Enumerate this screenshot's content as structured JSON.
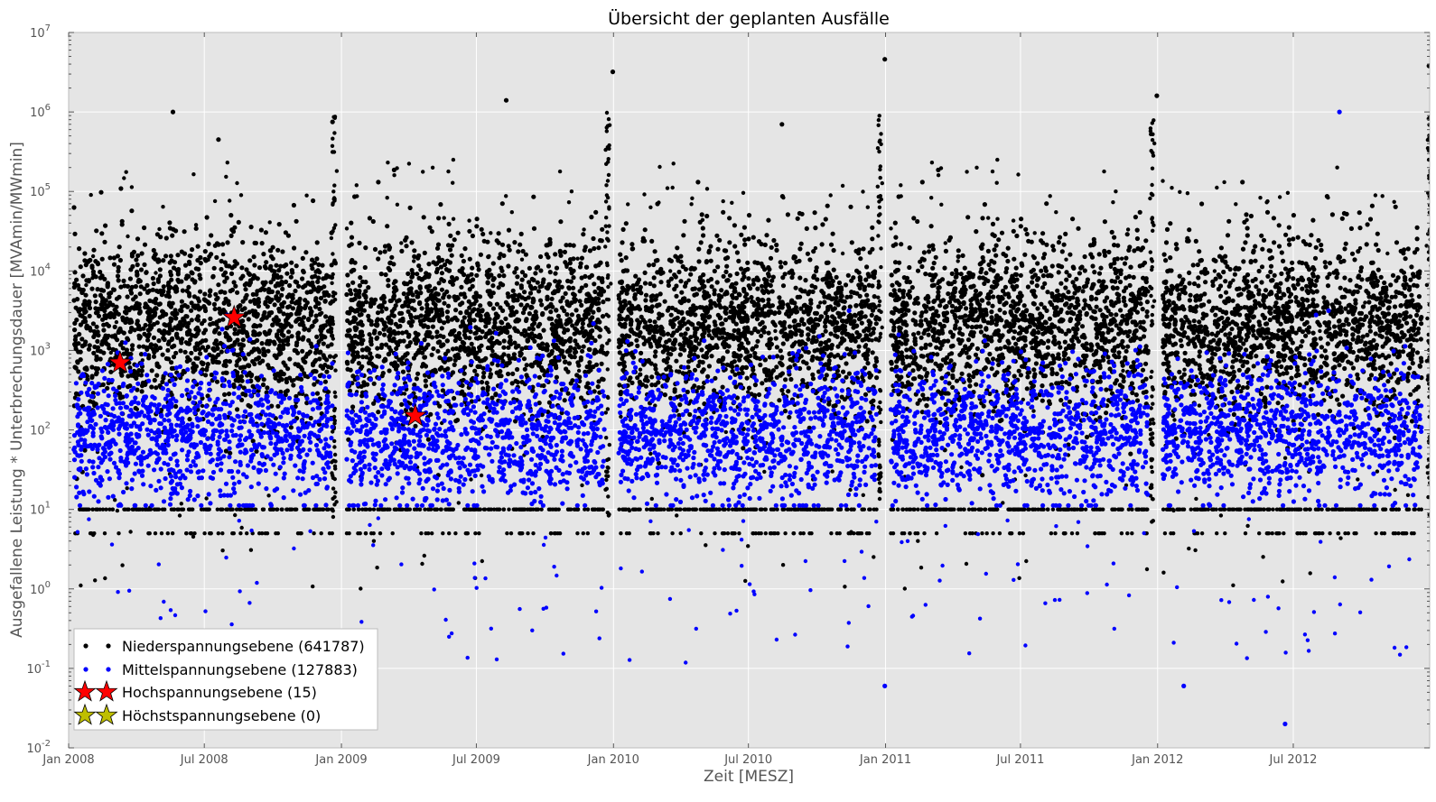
{
  "chart_data": {
    "type": "scatter",
    "title": "Übersicht der geplanten Ausfälle",
    "xlabel": "Zeit [MESZ]",
    "ylabel": "Ausgefallene Leistung * Unterbrechungsdauer [MVAmin/MWmin]",
    "yscale": "log",
    "xlim": [
      "2008-01-01",
      "2012-12-31"
    ],
    "ylim": [
      0.01,
      10000000
    ],
    "grid": true,
    "legend_position": "lower-left",
    "x_ticks": [
      "Jan 2008",
      "Jul 2008",
      "Jan 2009",
      "Jul 2009",
      "Jan 2010",
      "Jul 2010",
      "Jan 2011",
      "Jul 2011",
      "Jan 2012",
      "Jul 2012"
    ],
    "y_ticks": [
      "10-2",
      "10-1",
      "100",
      "101",
      "102",
      "103",
      "104",
      "105",
      "106",
      "107"
    ],
    "background": "#e5e5e5",
    "series": [
      {
        "name": "Niederspannungsebene (641787)",
        "color": "#000000",
        "marker": "dot",
        "typical_range": [
          10,
          30000
        ],
        "notable_points": [
          {
            "x": "2008-05-20",
            "y": 1000000
          },
          {
            "x": "2008-07-20",
            "y": 450000
          },
          {
            "x": "2008-12-20",
            "y": 750000
          },
          {
            "x": "2009-08-10",
            "y": 1400000
          },
          {
            "x": "2009-12-31",
            "y": 3200000
          },
          {
            "x": "2010-08-15",
            "y": 700000
          },
          {
            "x": "2010-12-31",
            "y": 4600000
          },
          {
            "x": "2011-12-31",
            "y": 1600000
          },
          {
            "x": "2012-12-30",
            "y": 3800000
          }
        ]
      },
      {
        "name": "Mittelspannungsebene (127883)",
        "color": "#0000ff",
        "marker": "dot",
        "typical_range": [
          10,
          2000
        ],
        "notable_points": [
          {
            "x": "2012-09-01",
            "y": 1000000
          },
          {
            "x": "2012-06-20",
            "y": 0.02
          },
          {
            "x": "2010-12-31",
            "y": 0.06
          },
          {
            "x": "2012-02-05",
            "y": 0.06
          }
        ]
      },
      {
        "name": "Hochspannungsebene (15)",
        "color": "#ff0000",
        "marker": "star",
        "points": [
          {
            "x": "2008-03-10",
            "y": 700
          },
          {
            "x": "2008-08-10",
            "y": 2600
          },
          {
            "x": "2009-04-10",
            "y": 150
          }
        ]
      },
      {
        "name": "Höchstspannungsebene (0)",
        "color": "#bfbf00",
        "marker": "star",
        "points": []
      }
    ]
  }
}
